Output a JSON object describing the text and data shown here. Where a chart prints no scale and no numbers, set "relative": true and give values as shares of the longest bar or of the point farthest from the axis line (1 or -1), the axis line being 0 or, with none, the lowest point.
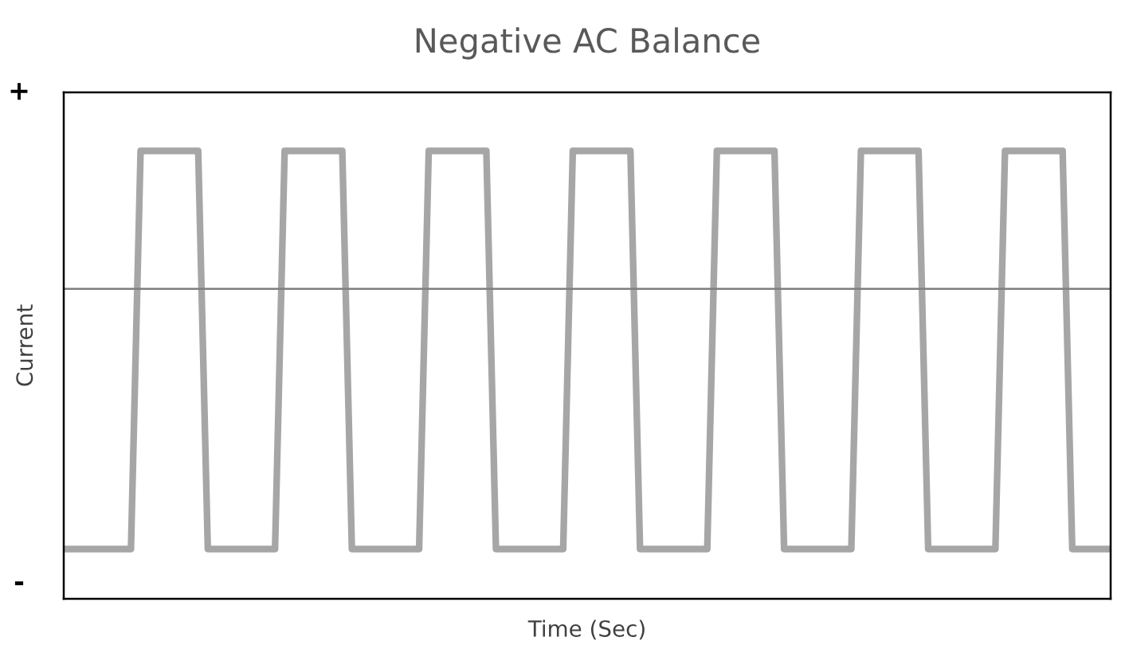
{
  "chart_data": {
    "type": "line",
    "title": "Negative AC Balance",
    "xlabel": "Time (Sec)",
    "ylabel": "Current",
    "relative": true,
    "annotations": [
      "+",
      "-"
    ],
    "categories": [
      null,
      null,
      null,
      null,
      null,
      null,
      null,
      null,
      null,
      null,
      null,
      null,
      null,
      null,
      null,
      null,
      null,
      null,
      null,
      null,
      null,
      null,
      null,
      null,
      null,
      null,
      null,
      null,
      null,
      null,
      null,
      null,
      null,
      null,
      null,
      null,
      null,
      null,
      null,
      null,
      null,
      null,
      null,
      null,
      null,
      null,
      null,
      null,
      null,
      null,
      null,
      null,
      null,
      null,
      null,
      null,
      null,
      null,
      null,
      null,
      null,
      null,
      null,
      null,
      null,
      null,
      null,
      null,
      null,
      null,
      null,
      null,
      null,
      null,
      null,
      null,
      null,
      null,
      null,
      null,
      null,
      null,
      null,
      null,
      null,
      null,
      null,
      null,
      null,
      null,
      null,
      null,
      null,
      null,
      null,
      null,
      null,
      null,
      null,
      null,
      null,
      null,
      null,
      null,
      null,
      null,
      null,
      null,
      null,
      null
    ],
    "series": [
      {
        "color": "#a6a6a6",
        "values": [
          -1,
          -1,
          -1,
          -1,
          -1,
          -1,
          -1,
          -1,
          0.53,
          0.53,
          0.53,
          0.53,
          0.53,
          0.53,
          0.53,
          -1,
          -1,
          -1,
          -1,
          -1,
          -1,
          -1,
          -1,
          0.53,
          0.53,
          0.53,
          0.53,
          0.53,
          0.53,
          0.53,
          -1,
          -1,
          -1,
          -1,
          -1,
          -1,
          -1,
          -1,
          0.53,
          0.53,
          0.53,
          0.53,
          0.53,
          0.53,
          0.53,
          -1,
          -1,
          -1,
          -1,
          -1,
          -1,
          -1,
          -1,
          0.53,
          0.53,
          0.53,
          0.53,
          0.53,
          0.53,
          0.53,
          -1,
          -1,
          -1,
          -1,
          -1,
          -1,
          -1,
          -1,
          0.53,
          0.53,
          0.53,
          0.53,
          0.53,
          0.53,
          0.53,
          -1,
          -1,
          -1,
          -1,
          -1,
          -1,
          -1,
          -1,
          0.53,
          0.53,
          0.53,
          0.53,
          0.53,
          0.53,
          0.53,
          -1,
          -1,
          -1,
          -1,
          -1,
          -1,
          -1,
          -1,
          0.53,
          0.53,
          0.53,
          0.53,
          0.53,
          0.53,
          0.53,
          -1,
          -1,
          -1,
          -1,
          -1
        ]
      }
    ],
    "grid": false,
    "legend": false,
    "marker": "none",
    "line_style": "solid"
  }
}
